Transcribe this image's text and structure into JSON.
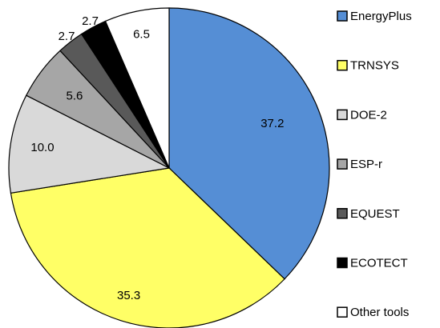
{
  "chart_data": {
    "type": "pie",
    "categories": [
      "EnergyPlus",
      "TRNSYS",
      "DOE-2",
      "ESP-r",
      "EQUEST",
      "ECOTECT",
      "Other tools"
    ],
    "values": [
      37.2,
      35.3,
      10.0,
      5.6,
      2.7,
      2.7,
      6.5
    ],
    "value_labels": [
      "37.2",
      "35.3",
      "10.0",
      "5.6",
      "2.7",
      "2.7",
      "6.5"
    ],
    "colors": [
      "#558ed5",
      "#ffff66",
      "#d9d9d9",
      "#a6a6a6",
      "#595959",
      "#000000",
      "#ffffff"
    ],
    "legend": "right"
  }
}
